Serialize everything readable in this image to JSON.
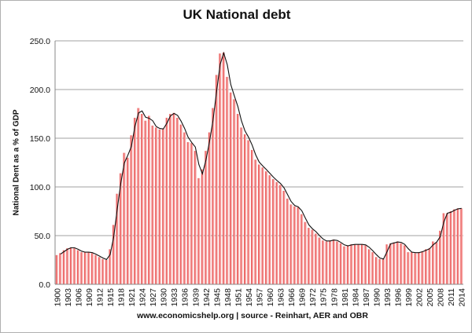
{
  "chart_data": {
    "type": "bar",
    "title": "UK National debt",
    "ylabel": "National Dent as a % of GDP",
    "xlabel": "",
    "footer": "www.economicshelp.org | source - Reinhart, AER and OBR",
    "ylim": [
      0,
      250
    ],
    "yticks": [
      "0.0",
      "50.0",
      "100.0",
      "150.0",
      "200.0",
      "250.0"
    ],
    "grid": true,
    "x_start": 1900,
    "x_end": 2014,
    "xtick_every": 3,
    "trendline": true,
    "colors": {
      "bar": "#e8403f",
      "bar_light": "#fbd3d3",
      "line": "#111111",
      "grid": "#a0a0a0"
    },
    "values": [
      30,
      32,
      35,
      37,
      38,
      37,
      35,
      33,
      33,
      33,
      32,
      30,
      28,
      26,
      25,
      36,
      61,
      93,
      114,
      135,
      130,
      153,
      171,
      181,
      175,
      168,
      173,
      163,
      161,
      159,
      160,
      171,
      175,
      176,
      171,
      164,
      156,
      146,
      145,
      137,
      109,
      118,
      137,
      156,
      181,
      215,
      237,
      238,
      213,
      197,
      190,
      175,
      161,
      154,
      148,
      138,
      128,
      123,
      120,
      116,
      112,
      108,
      105,
      102,
      96,
      88,
      82,
      80,
      79,
      72,
      64,
      58,
      56,
      52,
      48,
      45,
      44,
      45,
      46,
      44,
      42,
      39,
      40,
      41,
      41,
      41,
      41,
      40,
      36,
      33,
      28,
      26,
      26,
      41,
      42,
      43,
      44,
      42,
      40,
      33,
      33,
      32,
      33,
      34,
      36,
      37,
      44,
      43,
      55,
      73,
      73,
      75,
      77,
      78,
      78
    ]
  }
}
